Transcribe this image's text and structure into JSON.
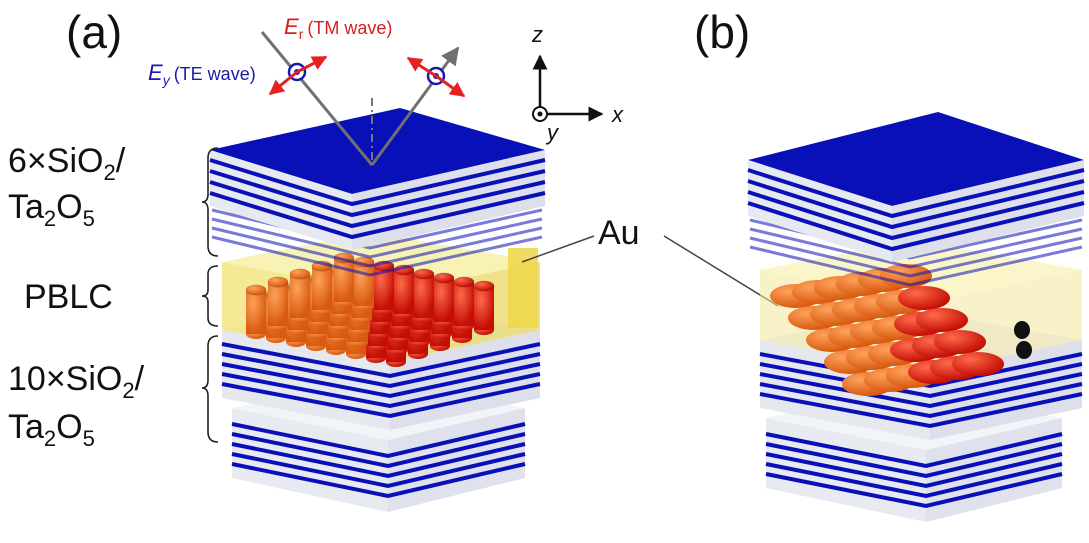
{
  "panels": {
    "a": {
      "label": "(a)"
    },
    "b": {
      "label": "(b)"
    }
  },
  "polarization": {
    "te": {
      "symbol": "E",
      "subscript": "y",
      "text": "(TE wave)",
      "color": "#1a1aa8"
    },
    "tm": {
      "symbol": "E",
      "subscript": "r",
      "text": "(TM wave)",
      "color": "#d42020"
    }
  },
  "axes": {
    "z": "z",
    "x": "x",
    "y": "y"
  },
  "layers": {
    "top_mirror": {
      "line1": "6×SiO",
      "sub1": "2",
      "tail1": "/",
      "line2": "Ta",
      "sub2a": "2",
      "mid2": "O",
      "sub2b": "5"
    },
    "liquid_crystal": "PBLC",
    "bottom_mirror": {
      "line1": "10×SiO",
      "sub1": "2",
      "tail1": "/",
      "line2": "Ta",
      "sub2a": "2",
      "mid2": "O",
      "sub2b": "5"
    }
  },
  "electrode_label": "Au",
  "colors": {
    "mirror_blue": "#0a10b8",
    "mirror_white": "#eef0f6",
    "lc_yellow": "#f2e27a",
    "cylinder_red": "#e0180c",
    "cylinder_orange": "#ee6a14",
    "arrow_red": "#e52222",
    "arrow_gray": "#707070"
  }
}
